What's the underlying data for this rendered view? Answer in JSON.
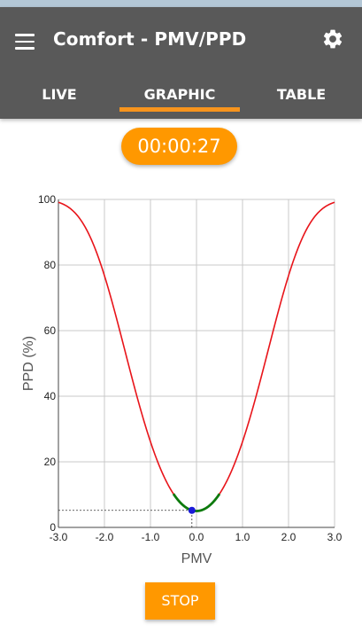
{
  "app": {
    "title": "Comfort - PMV/PPD",
    "menu_icon": "menu-icon",
    "settings_icon": "gear-icon"
  },
  "tabs": [
    {
      "label": "LIVE",
      "selected": false
    },
    {
      "label": "GRAPHIC",
      "selected": true
    },
    {
      "label": "TABLE",
      "selected": false
    }
  ],
  "timer": "00:00:27",
  "stop_label": "STOP",
  "colors": {
    "appbar": "#595959",
    "accent": "#ff9800",
    "curve": "#e8141a",
    "comfort_zone": "#0d7a0d",
    "marker": "#1a1ad8"
  },
  "chart_data": {
    "type": "line",
    "title": "",
    "xlabel": "PMV",
    "ylabel": "PPD (%)",
    "xlim": [
      -3.0,
      3.0
    ],
    "ylim": [
      0,
      100
    ],
    "x_ticks": [
      "-3.0",
      "-2.0",
      "-1.0",
      "0.0",
      "1.0",
      "2.0",
      "3.0"
    ],
    "y_ticks": [
      "0",
      "20",
      "40",
      "60",
      "80",
      "100"
    ],
    "grid": true,
    "series": [
      {
        "formula": "PPD = 100 - 95*exp(-0.03353*PMV^4 - 0.2179*PMV^2)",
        "x_range": [
          -3.0,
          3.0
        ],
        "color": "#e8141a"
      },
      {
        "x_range": [
          -0.5,
          0.5
        ],
        "color": "#0d7a0d"
      }
    ],
    "current_point": {
      "pmv": -0.1,
      "ppd": 5.2
    }
  }
}
